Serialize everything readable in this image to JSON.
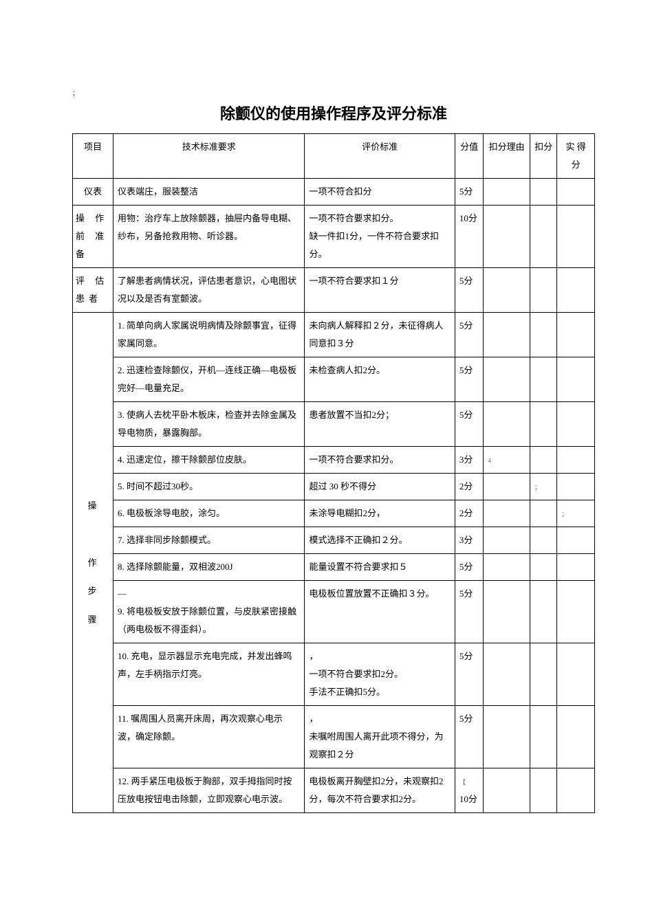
{
  "title": "除颤仪的使用操作程序及评分标准",
  "headers": {
    "project": "项目",
    "requirement": "技术标准要求",
    "criteria": "评价标准",
    "score": "分值",
    "reason": "扣分理由",
    "deduct": "扣分",
    "actual": "实 得分"
  },
  "sections": {
    "appearance": {
      "label": "仪表",
      "req": "仪表端庄，服装整洁",
      "criteria": "一项不符合扣分",
      "score": "5分"
    },
    "preop": {
      "label": "操 作前 准备",
      "req": "用物：治疗车上放除颤器，抽屉内备导电糊、纱布，另备抢救用物、听诊器。",
      "criteria": "一项不符合要求扣分。\n缺一件扣1分，一件不符合要求扣分。",
      "score": "10分"
    },
    "assess": {
      "label": "评 估患者",
      "req": "了解患者病情状况，评估患者意识，心电图状况以及是否有室颤波。",
      "criteria": "一项不符合要求扣１分",
      "score": "5分"
    },
    "steps": {
      "label": "操\n\n作\n步\n骤",
      "rows": [
        {
          "req": "1. 简单向病人家属说明病情及除颤事宜，征得家属同意。",
          "criteria": "未向病人解释扣２分，未征得病人同意扣３分",
          "score": "5分",
          "sup": ""
        },
        {
          "req": "2. 迅速检查除颤仪，开机—连线正确—电极板完好—电量充足。",
          "criteria": "未检查病人扣2分。",
          "score": "5分",
          "sup": ""
        },
        {
          "req": "3. 使病人去枕平卧木板床，检查并去除金属及导电物质，暴露胸部。",
          "criteria": "患者放置不当扣2分；",
          "score": "5分",
          "sup": ""
        },
        {
          "req": "4. 迅速定位，擦干除颤部位皮肤。",
          "criteria": "一项不符合要求扣分。",
          "score": "3分",
          "sup": ""
        },
        {
          "req": "5. 时间不超过30秒。",
          "criteria": "超过 30 秒不得分",
          "score": "2分",
          "sup": ""
        },
        {
          "req": "6. 电极板涂导电胶，涂匀。",
          "criteria": "未涂导电糊扣2分，",
          "score": "2分",
          "sup": ""
        },
        {
          "req": "7. 选择非同步除颤模式。",
          "criteria": "模式选择不正确扣２分。",
          "score": "3分",
          "sup": ""
        },
        {
          "req": "8. 选择除颤能量，双相波200J",
          "criteria": "能量设置不符合要求扣５",
          "score": "5分",
          "sup": ""
        },
        {
          "req": "—\n9. 将电极板安放于除颤位置，与皮肤紧密接触（两电极板不得歪斜）。",
          "criteria": "电极板位置放置不正确扣３分。",
          "score": "5分",
          "sup": ""
        },
        {
          "req": "10. 充电，显示器显示充电完成，并发出蜂鸣声，左手柄指示灯亮。",
          "criteria": "，\n一项不符合要求扣2分。\n手法不正确扣5分。",
          "score": "5分",
          "sup": ""
        },
        {
          "req": "11. 嘱周围人员离开床周，再次观察心电示波，确定除颤。",
          "criteria": "，\n未嘱咐周围人离开此项不得分，为观察扣２分",
          "score": "5分",
          "sup": ""
        },
        {
          "req": "12. 两手紧压电极板于胸部，双手拇指同时按压放电按钮电击除颤，立即观察心电示波。",
          "criteria": "电极板离开胸壁扣2分，未观察扣2分，每次不符合要求扣2分。",
          "score": "10分",
          "sup": "【"
        }
      ]
    }
  },
  "colors": {
    "text": "#000000",
    "border": "#000000",
    "background": "#ffffff"
  }
}
